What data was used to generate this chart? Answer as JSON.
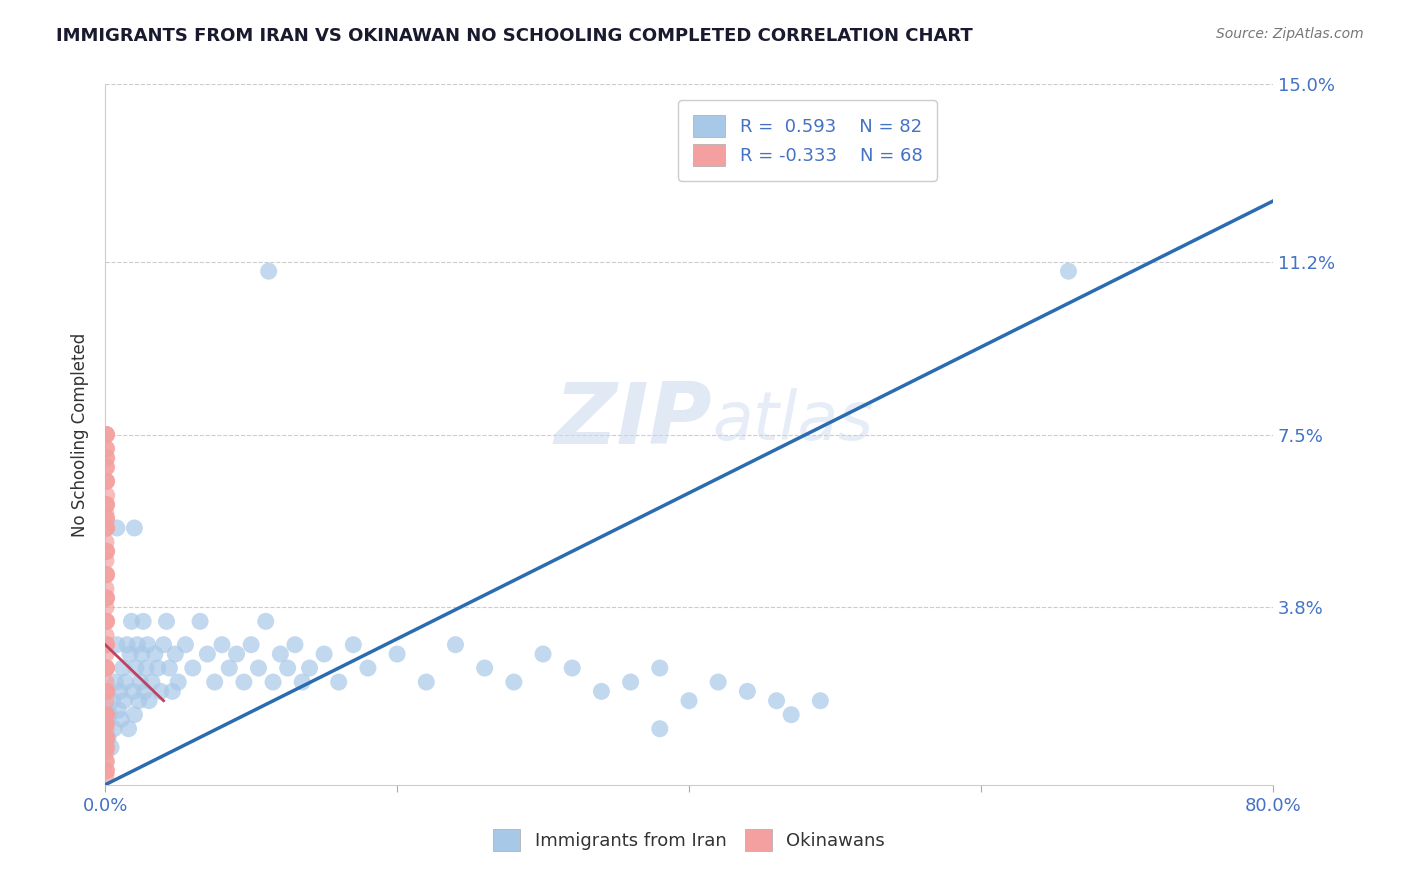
{
  "title": "IMMIGRANTS FROM IRAN VS OKINAWAN NO SCHOOLING COMPLETED CORRELATION CHART",
  "source_text": "Source: ZipAtlas.com",
  "ylabel": "No Schooling Completed",
  "xlim": [
    0.0,
    0.8
  ],
  "ylim": [
    0.0,
    0.15
  ],
  "yticks": [
    0.038,
    0.075,
    0.112,
    0.15
  ],
  "ytick_labels": [
    "3.8%",
    "7.5%",
    "11.2%",
    "15.0%"
  ],
  "xticks": [
    0.0,
    0.2,
    0.4,
    0.6,
    0.8
  ],
  "xtick_labels": [
    "0.0%",
    "",
    "",
    "",
    "80.0%"
  ],
  "blue_R": 0.593,
  "blue_N": 82,
  "pink_R": -0.333,
  "pink_N": 68,
  "blue_color": "#A8C8E8",
  "pink_color": "#F4A0A0",
  "blue_line_color": "#2B6CB0",
  "pink_line_color": "#C04060",
  "watermark_zip": "ZIP",
  "watermark_atlas": "atlas",
  "legend_label_blue": "Immigrants from Iran",
  "legend_label_pink": "Okinawans",
  "blue_dots": [
    [
      0.002,
      0.01
    ],
    [
      0.003,
      0.015
    ],
    [
      0.004,
      0.008
    ],
    [
      0.005,
      0.018
    ],
    [
      0.006,
      0.012
    ],
    [
      0.007,
      0.022
    ],
    [
      0.008,
      0.03
    ],
    [
      0.009,
      0.016
    ],
    [
      0.01,
      0.02
    ],
    [
      0.011,
      0.014
    ],
    [
      0.012,
      0.025
    ],
    [
      0.013,
      0.018
    ],
    [
      0.014,
      0.022
    ],
    [
      0.015,
      0.03
    ],
    [
      0.016,
      0.012
    ],
    [
      0.017,
      0.028
    ],
    [
      0.018,
      0.035
    ],
    [
      0.019,
      0.02
    ],
    [
      0.02,
      0.015
    ],
    [
      0.021,
      0.025
    ],
    [
      0.022,
      0.03
    ],
    [
      0.023,
      0.018
    ],
    [
      0.024,
      0.022
    ],
    [
      0.025,
      0.028
    ],
    [
      0.026,
      0.035
    ],
    [
      0.027,
      0.02
    ],
    [
      0.028,
      0.025
    ],
    [
      0.029,
      0.03
    ],
    [
      0.03,
      0.018
    ],
    [
      0.032,
      0.022
    ],
    [
      0.034,
      0.028
    ],
    [
      0.036,
      0.025
    ],
    [
      0.038,
      0.02
    ],
    [
      0.04,
      0.03
    ],
    [
      0.042,
      0.035
    ],
    [
      0.044,
      0.025
    ],
    [
      0.046,
      0.02
    ],
    [
      0.048,
      0.028
    ],
    [
      0.05,
      0.022
    ],
    [
      0.055,
      0.03
    ],
    [
      0.06,
      0.025
    ],
    [
      0.065,
      0.035
    ],
    [
      0.07,
      0.028
    ],
    [
      0.075,
      0.022
    ],
    [
      0.08,
      0.03
    ],
    [
      0.085,
      0.025
    ],
    [
      0.09,
      0.028
    ],
    [
      0.095,
      0.022
    ],
    [
      0.1,
      0.03
    ],
    [
      0.105,
      0.025
    ],
    [
      0.11,
      0.035
    ],
    [
      0.115,
      0.022
    ],
    [
      0.12,
      0.028
    ],
    [
      0.125,
      0.025
    ],
    [
      0.13,
      0.03
    ],
    [
      0.135,
      0.022
    ],
    [
      0.14,
      0.025
    ],
    [
      0.15,
      0.028
    ],
    [
      0.16,
      0.022
    ],
    [
      0.17,
      0.03
    ],
    [
      0.18,
      0.025
    ],
    [
      0.2,
      0.028
    ],
    [
      0.22,
      0.022
    ],
    [
      0.24,
      0.03
    ],
    [
      0.26,
      0.025
    ],
    [
      0.28,
      0.022
    ],
    [
      0.3,
      0.028
    ],
    [
      0.32,
      0.025
    ],
    [
      0.34,
      0.02
    ],
    [
      0.36,
      0.022
    ],
    [
      0.38,
      0.025
    ],
    [
      0.4,
      0.018
    ],
    [
      0.42,
      0.022
    ],
    [
      0.44,
      0.02
    ],
    [
      0.46,
      0.018
    ],
    [
      0.38,
      0.012
    ],
    [
      0.47,
      0.015
    ],
    [
      0.49,
      0.018
    ],
    [
      0.112,
      0.11
    ],
    [
      0.66,
      0.11
    ],
    [
      0.008,
      0.055
    ],
    [
      0.02,
      0.055
    ]
  ],
  "pink_dots": [
    [
      0.0005,
      0.055
    ],
    [
      0.0005,
      0.05
    ],
    [
      0.0005,
      0.045
    ],
    [
      0.0005,
      0.04
    ],
    [
      0.0005,
      0.035
    ],
    [
      0.0005,
      0.03
    ],
    [
      0.0005,
      0.025
    ],
    [
      0.0005,
      0.02
    ],
    [
      0.0005,
      0.015
    ],
    [
      0.0005,
      0.01
    ],
    [
      0.0005,
      0.008
    ],
    [
      0.0005,
      0.005
    ],
    [
      0.0005,
      0.06
    ],
    [
      0.0005,
      0.048
    ],
    [
      0.0005,
      0.038
    ],
    [
      0.0005,
      0.028
    ],
    [
      0.0005,
      0.018
    ],
    [
      0.0005,
      0.012
    ],
    [
      0.0005,
      0.003
    ],
    [
      0.0005,
      0.022
    ],
    [
      0.0005,
      0.032
    ],
    [
      0.0005,
      0.042
    ],
    [
      0.0005,
      0.052
    ],
    [
      0.0005,
      0.058
    ],
    [
      0.0005,
      0.065
    ],
    [
      0.0005,
      0.068
    ],
    [
      0.0008,
      0.045
    ],
    [
      0.0008,
      0.035
    ],
    [
      0.0008,
      0.025
    ],
    [
      0.0008,
      0.015
    ],
    [
      0.0008,
      0.055
    ],
    [
      0.0008,
      0.06
    ],
    [
      0.0008,
      0.04
    ],
    [
      0.0008,
      0.03
    ],
    [
      0.0008,
      0.02
    ],
    [
      0.0008,
      0.01
    ],
    [
      0.0008,
      0.05
    ],
    [
      0.0008,
      0.005
    ],
    [
      0.0008,
      0.065
    ],
    [
      0.0008,
      0.07
    ],
    [
      0.001,
      0.03
    ],
    [
      0.001,
      0.02
    ],
    [
      0.001,
      0.01
    ],
    [
      0.001,
      0.04
    ],
    [
      0.001,
      0.05
    ],
    [
      0.001,
      0.055
    ],
    [
      0.001,
      0.045
    ],
    [
      0.001,
      0.035
    ],
    [
      0.001,
      0.025
    ],
    [
      0.001,
      0.015
    ],
    [
      0.001,
      0.008
    ],
    [
      0.001,
      0.06
    ],
    [
      0.001,
      0.065
    ],
    [
      0.001,
      0.07
    ],
    [
      0.0005,
      0.072
    ],
    [
      0.0005,
      0.002
    ],
    [
      0.0005,
      0.007
    ],
    [
      0.0005,
      0.013
    ],
    [
      0.0008,
      0.013
    ],
    [
      0.0008,
      0.057
    ],
    [
      0.001,
      0.057
    ],
    [
      0.001,
      0.003
    ],
    [
      0.001,
      0.062
    ],
    [
      0.001,
      0.075
    ],
    [
      0.0008,
      0.075
    ],
    [
      0.0005,
      0.075
    ],
    [
      0.001,
      0.068
    ],
    [
      0.001,
      0.072
    ]
  ],
  "blue_line_x": [
    0.0,
    0.8
  ],
  "blue_line_y": [
    0.0,
    0.125
  ],
  "pink_line_x": [
    0.0,
    0.04
  ],
  "pink_line_y": [
    0.03,
    0.018
  ]
}
